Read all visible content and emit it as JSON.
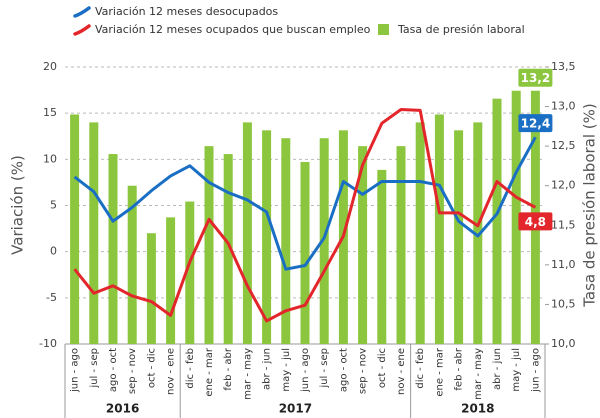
{
  "chart_data": {
    "type": "combo",
    "categories": [
      "jun - ago",
      "jul - sep",
      "ago - oct",
      "sep - nov",
      "oct - dic",
      "nov - ene",
      "dic - feb",
      "ene - mar",
      "feb - abr",
      "mar - may",
      "abr - jun",
      "may - jul",
      "jun - ago",
      "jul - sep",
      "ago - oct",
      "sep - nov",
      "oct - dic",
      "nov - ene",
      "dic - feb",
      "ene - mar",
      "feb - abr",
      "mar - may",
      "abr - jun",
      "may - jul",
      "jun - ago"
    ],
    "groups": [
      {
        "label": "2016",
        "count": 6
      },
      {
        "label": "2017",
        "count": 12
      },
      {
        "label": "2018",
        "count": 7
      }
    ],
    "y_label": "Variación (%)",
    "y2_label": "Tasa de presión laboral (%)",
    "ylim": [
      -10,
      20
    ],
    "yticks": [
      -10,
      -5,
      0,
      5,
      10,
      15,
      20
    ],
    "y2lim": [
      10.0,
      13.5
    ],
    "y2ticks": [
      {
        "value": 10.0,
        "label": "10,0"
      },
      {
        "value": 10.5,
        "label": "10,5"
      },
      {
        "value": 11.0,
        "label": "11,0"
      },
      {
        "value": 11.5,
        "label": "11,5"
      },
      {
        "value": 12.0,
        "label": "12,0"
      },
      {
        "value": 12.5,
        "label": "12,5"
      },
      {
        "value": 13.0,
        "label": "13,0"
      },
      {
        "value": 13.5,
        "label": "13,5"
      }
    ],
    "grid": true,
    "legend": "top-left",
    "series": [
      {
        "name": "Variación 12 meses desocupados",
        "type": "line",
        "color": "#1a6fc4",
        "values": [
          8.1,
          6.5,
          3.3,
          4.8,
          6.6,
          8.2,
          9.3,
          7.5,
          6.4,
          5.6,
          4.3,
          -1.9,
          -1.5,
          1.5,
          7.6,
          6.2,
          7.6,
          7.6,
          7.6,
          7.2,
          3.3,
          1.7,
          4.1,
          8.6,
          12.4
        ],
        "value_labels": [
          null,
          null,
          null,
          null,
          null,
          null,
          null,
          null,
          null,
          null,
          null,
          null,
          null,
          null,
          null,
          null,
          null,
          null,
          null,
          null,
          null,
          null,
          null,
          null,
          "12,4"
        ]
      },
      {
        "name": "Variación 12 meses ocupados que buscan empleo",
        "type": "line",
        "color": "#e3262b",
        "values": [
          -1.9,
          -4.5,
          -3.7,
          -4.8,
          -5.4,
          -6.9,
          -1.1,
          3.5,
          0.9,
          -3.7,
          -7.5,
          -6.4,
          -5.8,
          -2.1,
          1.7,
          9.4,
          13.9,
          15.4,
          15.3,
          4.2,
          4.2,
          2.8,
          7.6,
          5.9,
          4.8
        ],
        "value_labels": [
          null,
          null,
          null,
          null,
          null,
          null,
          null,
          null,
          null,
          null,
          null,
          null,
          null,
          null,
          null,
          null,
          null,
          null,
          null,
          null,
          null,
          null,
          null,
          null,
          "4,8"
        ]
      },
      {
        "name": "Tasa de presión laboral",
        "type": "bar",
        "axis": "y2",
        "color": "#8cc63f",
        "values": [
          12.9,
          12.8,
          12.4,
          12.0,
          11.4,
          11.6,
          11.8,
          12.5,
          12.4,
          12.8,
          12.7,
          12.6,
          12.3,
          12.6,
          12.7,
          12.5,
          12.2,
          12.5,
          12.8,
          12.9,
          12.7,
          12.8,
          13.1,
          13.2,
          13.2
        ],
        "value_labels": [
          null,
          null,
          null,
          null,
          null,
          null,
          null,
          null,
          null,
          null,
          null,
          null,
          null,
          null,
          null,
          null,
          null,
          null,
          null,
          null,
          null,
          null,
          null,
          null,
          "13,2"
        ]
      }
    ]
  }
}
